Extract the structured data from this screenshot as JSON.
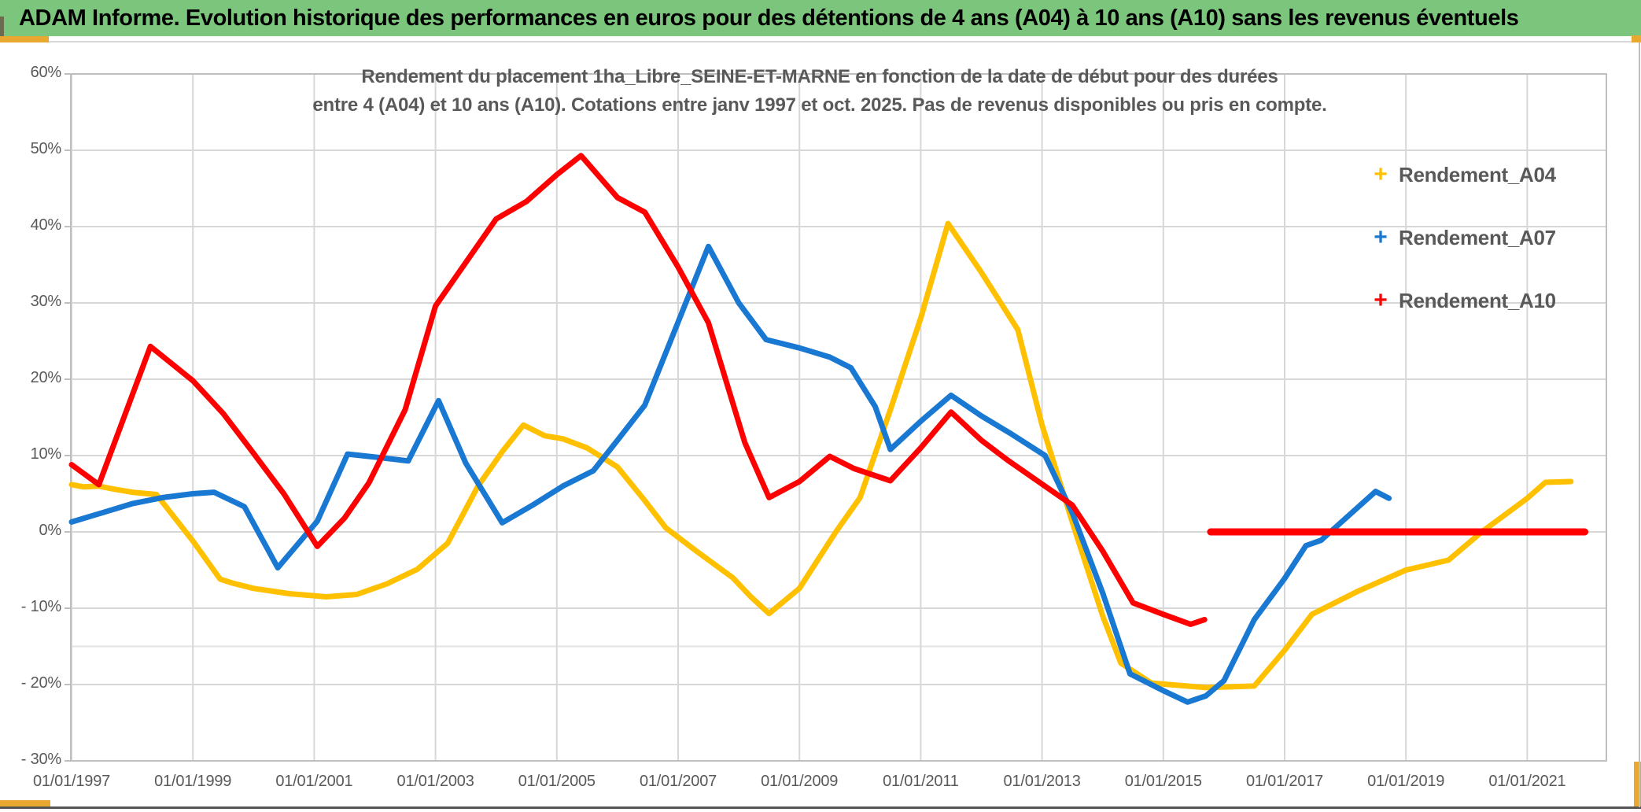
{
  "header": {
    "title": "ADAM Informe. Evolution historique des performances en euros pour des détentions de 4 ans (A04) à 10 ans (A10) sans les revenus éventuels"
  },
  "colors": {
    "header_bg": "#7CC57C",
    "accent_orange": "#E9A830",
    "corner_dark": "#6B6B4F",
    "grid": "#D7D7D7",
    "grid_faint": "#E3E3E3",
    "plot_border": "#BFBFBF",
    "axis_text": "#595959",
    "bottom_line": "#555555",
    "series_a04": "#FFC000",
    "series_a07": "#1878D2",
    "series_a10": "#FE0000"
  },
  "chart_data": {
    "type": "line",
    "title_line1": "Rendement du placement 1ha_Libre_SEINE-ET-MARNE en fonction de la date de début pour des durées",
    "title_line2": "entre 4 (A04) et 10 ans (A10). Cotations entre janv 1997 et oct. 2025. Pas de revenus disponibles ou pris en compte.",
    "grid_on": true,
    "legend_position": "right",
    "x_axis": {
      "tick_years": [
        1997,
        1999,
        2001,
        2003,
        2005,
        2007,
        2009,
        2011,
        2013,
        2015,
        2017,
        2019,
        2021
      ],
      "tick_labels": [
        "01/01/1997",
        "01/01/1999",
        "01/01/2001",
        "01/01/2003",
        "01/01/2005",
        "01/01/2007",
        "01/01/2009",
        "01/01/2011",
        "01/01/2013",
        "01/01/2015",
        "01/01/2017",
        "01/01/2019",
        "01/01/2021"
      ],
      "range_years": [
        1996.97,
        2022.3
      ]
    },
    "y_axis": {
      "unit": "%",
      "range": [
        -30,
        60
      ],
      "tick_values": [
        60,
        50,
        40,
        30,
        20,
        10,
        0,
        -10,
        -20,
        -30
      ],
      "tick_labels": [
        "60%",
        "50%",
        "40%",
        "30%",
        "20%",
        "10%",
        "0%",
        "- 10%",
        "- 20%",
        "- 30%"
      ],
      "inner_grid_values": [
        50,
        40,
        30,
        20,
        10,
        0,
        -10,
        -20
      ],
      "extra_faint_line_value": -15
    },
    "legend": [
      {
        "label": "Rendement_A04",
        "color": "#FFC000"
      },
      {
        "label": "Rendement_A07",
        "color": "#1878D2"
      },
      {
        "label": "Rendement_A10",
        "color": "#FE0000"
      }
    ],
    "series": [
      {
        "name": "Rendement_A04",
        "color": "#FFC000",
        "width": 7,
        "points": [
          [
            1997,
            6.2
          ],
          [
            1997.2,
            5.9
          ],
          [
            1997.45,
            6
          ],
          [
            1997.7,
            5.6
          ],
          [
            1998,
            5.2
          ],
          [
            1998.4,
            4.9
          ],
          [
            1999,
            -1.2
          ],
          [
            1999.45,
            -6.2
          ],
          [
            1999.65,
            -6.7
          ],
          [
            2000,
            -7.4
          ],
          [
            2000.6,
            -8.1
          ],
          [
            2001.2,
            -8.5
          ],
          [
            2001.7,
            -8.2
          ],
          [
            2002.2,
            -6.8
          ],
          [
            2002.7,
            -4.9
          ],
          [
            2003.2,
            -1.5
          ],
          [
            2003.7,
            6
          ],
          [
            2004.1,
            10.5
          ],
          [
            2004.45,
            14
          ],
          [
            2004.8,
            12.6
          ],
          [
            2005.1,
            12.2
          ],
          [
            2005.5,
            11
          ],
          [
            2006,
            8.5
          ],
          [
            2006.45,
            4.1
          ],
          [
            2006.8,
            0.5
          ],
          [
            2007.3,
            -2.5
          ],
          [
            2007.9,
            -6
          ],
          [
            2008.2,
            -8.5
          ],
          [
            2008.5,
            -10.7
          ],
          [
            2009,
            -7.4
          ],
          [
            2009.6,
            0
          ],
          [
            2010,
            4.5
          ],
          [
            2010.5,
            16
          ],
          [
            2011,
            28
          ],
          [
            2011.45,
            40.4
          ],
          [
            2012,
            34
          ],
          [
            2012.6,
            26.5
          ],
          [
            2013,
            14
          ],
          [
            2013.55,
            0
          ],
          [
            2014,
            -11
          ],
          [
            2014.3,
            -17.2
          ],
          [
            2014.8,
            -19.8
          ],
          [
            2015.7,
            -20.4
          ],
          [
            2016.5,
            -20.2
          ],
          [
            2017,
            -15.5
          ],
          [
            2017.45,
            -10.8
          ],
          [
            2018.2,
            -7.8
          ],
          [
            2019,
            -5
          ],
          [
            2019.7,
            -3.7
          ],
          [
            2020.25,
            0
          ],
          [
            2021,
            4.4
          ],
          [
            2021.3,
            6.5
          ],
          [
            2021.72,
            6.6
          ]
        ]
      },
      {
        "name": "Rendement_A07",
        "color": "#1878D2",
        "width": 7,
        "points": [
          [
            1997,
            1.3
          ],
          [
            1997.5,
            2.5
          ],
          [
            1998,
            3.7
          ],
          [
            1998.5,
            4.5
          ],
          [
            1999,
            5
          ],
          [
            1999.35,
            5.2
          ],
          [
            1999.85,
            3.3
          ],
          [
            2000.4,
            -4.7
          ],
          [
            2001.05,
            1.4
          ],
          [
            2001.55,
            10.2
          ],
          [
            2002,
            9.8
          ],
          [
            2002.55,
            9.3
          ],
          [
            2003.05,
            17.2
          ],
          [
            2003.5,
            9
          ],
          [
            2004.1,
            1.2
          ],
          [
            2004.6,
            3.5
          ],
          [
            2005.1,
            6
          ],
          [
            2005.6,
            8
          ],
          [
            2006,
            12
          ],
          [
            2006.45,
            16.6
          ],
          [
            2007,
            27.5
          ],
          [
            2007.5,
            37.4
          ],
          [
            2008,
            30
          ],
          [
            2008.45,
            25.2
          ],
          [
            2009,
            24.1
          ],
          [
            2009.5,
            22.9
          ],
          [
            2009.85,
            21.5
          ],
          [
            2010.25,
            16.4
          ],
          [
            2010.5,
            10.8
          ],
          [
            2011,
            14.5
          ],
          [
            2011.5,
            17.9
          ],
          [
            2012,
            15.2
          ],
          [
            2012.5,
            12.8
          ],
          [
            2013.05,
            10
          ],
          [
            2013.5,
            2.5
          ],
          [
            2014,
            -8
          ],
          [
            2014.45,
            -18.6
          ],
          [
            2015,
            -20.8
          ],
          [
            2015.4,
            -22.3
          ],
          [
            2015.7,
            -21.5
          ],
          [
            2016,
            -19.5
          ],
          [
            2016.5,
            -11.5
          ],
          [
            2017,
            -6.1
          ],
          [
            2017.35,
            -1.8
          ],
          [
            2017.6,
            -1.1
          ],
          [
            2018.5,
            5.3
          ],
          [
            2018.72,
            4.4
          ]
        ]
      },
      {
        "name": "Rendement_A10",
        "color": "#FE0000",
        "width": 7,
        "points": [
          [
            1997,
            8.8
          ],
          [
            1997.45,
            6.2
          ],
          [
            1998.3,
            24.3
          ],
          [
            1999,
            19.8
          ],
          [
            1999.5,
            15.5
          ],
          [
            2000,
            10.3
          ],
          [
            2000.5,
            5
          ],
          [
            2001.05,
            -1.9
          ],
          [
            2001.5,
            1.8
          ],
          [
            2001.9,
            6.4
          ],
          [
            2002.5,
            16
          ],
          [
            2003,
            29.6
          ],
          [
            2003.5,
            35.3
          ],
          [
            2004,
            41
          ],
          [
            2004.5,
            43.3
          ],
          [
            2005,
            46.8
          ],
          [
            2005.4,
            49.3
          ],
          [
            2006,
            43.8
          ],
          [
            2006.45,
            41.9
          ],
          [
            2007,
            34.7
          ],
          [
            2007.5,
            27.4
          ],
          [
            2008.1,
            11.7
          ],
          [
            2008.5,
            4.5
          ],
          [
            2009,
            6.6
          ],
          [
            2009.5,
            9.9
          ],
          [
            2009.9,
            8.3
          ],
          [
            2010.5,
            6.7
          ],
          [
            2011,
            11
          ],
          [
            2011.5,
            15.7
          ],
          [
            2012,
            12
          ],
          [
            2012.45,
            9.3
          ],
          [
            2013.5,
            3.5
          ],
          [
            2014,
            -2.5
          ],
          [
            2014.5,
            -9.3
          ],
          [
            2015,
            -10.8
          ],
          [
            2015.45,
            -12.1
          ],
          [
            2015.68,
            -11.5
          ]
        ]
      },
      {
        "name": "Rendement_A10_zero_tail",
        "color": "#FE0000",
        "width": 9,
        "points": [
          [
            2015.78,
            0
          ],
          [
            2021.95,
            0
          ]
        ]
      }
    ]
  }
}
